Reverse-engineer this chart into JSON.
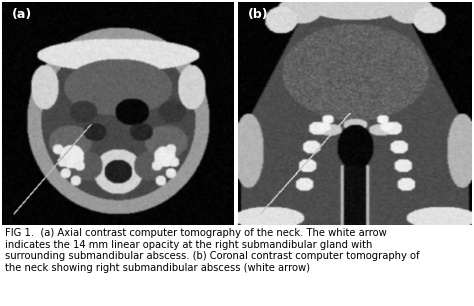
{
  "fig_width": 4.74,
  "fig_height": 3.06,
  "dpi": 100,
  "background_color": "#ffffff",
  "panel_a_label": "(a)",
  "panel_b_label": "(b)",
  "label_color": "white",
  "label_fontsize": 9,
  "caption_text": "FIG 1.  (a) Axial contrast computer tomography of the neck. The white arrow\nindicates the 14 mm linear opacity at the right submandibular gland with\nsurrounding submandibular abscess. (b) Coronal contrast computer tomography of\nthe neck showing right submandibular abscess (white arrow)",
  "caption_fontsize": 7.2,
  "caption_color": "#000000"
}
